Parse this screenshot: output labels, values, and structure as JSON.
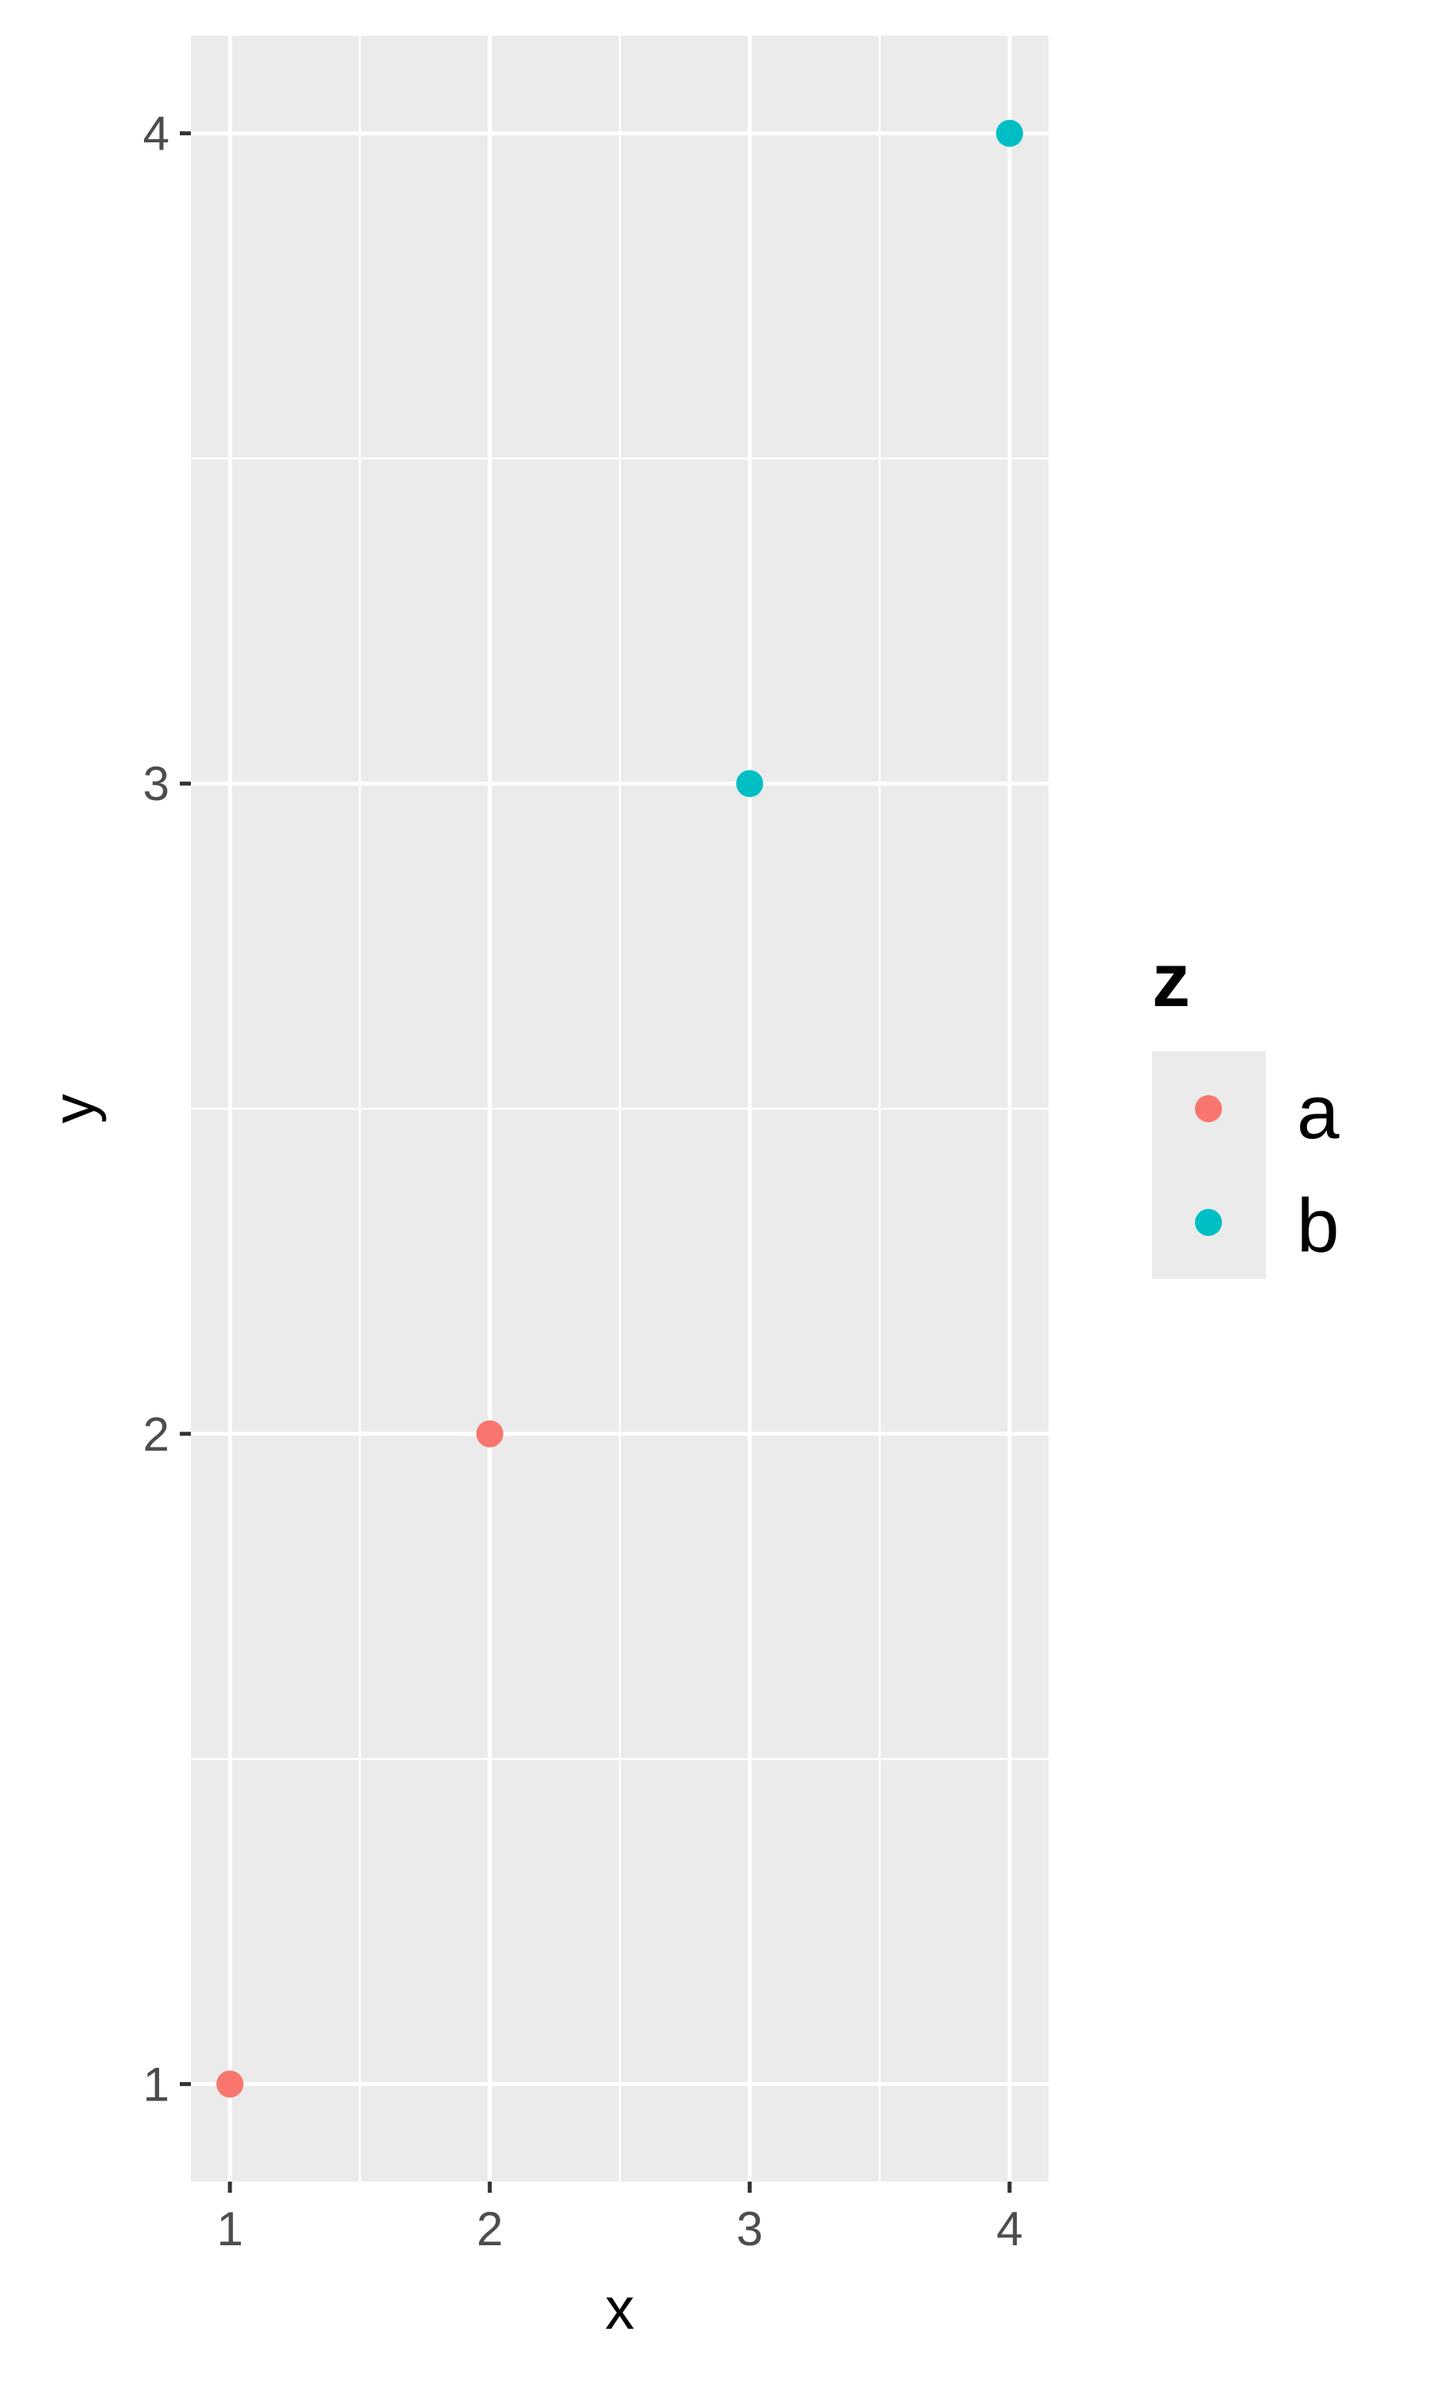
{
  "chart_data": {
    "type": "scatter",
    "title": "",
    "xlabel": "x",
    "ylabel": "y",
    "xlim": [
      0.85,
      4.15
    ],
    "ylim": [
      0.85,
      4.15
    ],
    "x_ticks": [
      "1",
      "2",
      "3",
      "4"
    ],
    "y_ticks": [
      "1",
      "2",
      "3",
      "4"
    ],
    "grid": true,
    "legend_position": "right",
    "series": [
      {
        "name": "a",
        "color": "#F8766D",
        "points": [
          {
            "x": 1,
            "y": 1
          },
          {
            "x": 2,
            "y": 2
          }
        ]
      },
      {
        "name": "b",
        "color": "#00BFC4",
        "points": [
          {
            "x": 3,
            "y": 3
          },
          {
            "x": 4,
            "y": 4
          }
        ]
      }
    ],
    "legend": {
      "title": "z",
      "entries": [
        {
          "label": "a",
          "color": "#F8766D"
        },
        {
          "label": "b",
          "color": "#00BFC4"
        }
      ]
    }
  }
}
